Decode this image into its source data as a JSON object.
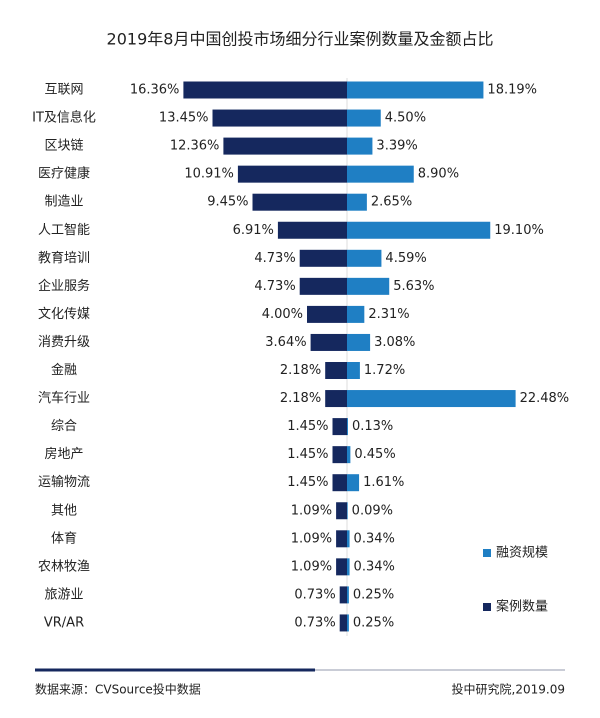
{
  "chart_data": {
    "type": "butterfly-bar",
    "title": "2019年8月中国创投市场细分行业案例数量及金额占比",
    "categories": [
      "互联网",
      "IT及信息化",
      "区块链",
      "医疗健康",
      "制造业",
      "人工智能",
      "教育培训",
      "企业服务",
      "文化传媒",
      "消费升级",
      "金融",
      "汽车行业",
      "综合",
      "房地产",
      "运输物流",
      "其他",
      "体育",
      "农林牧渔",
      "旅游业",
      "VR/AR"
    ],
    "series": [
      {
        "name": "融资规模",
        "color": "#1f7fc4",
        "side": "right",
        "values": [
          18.19,
          4.5,
          3.39,
          8.9,
          2.65,
          19.1,
          4.59,
          5.63,
          2.31,
          3.08,
          1.72,
          22.48,
          0.13,
          0.45,
          1.61,
          0.09,
          0.34,
          0.34,
          0.25,
          0.25
        ],
        "value_labels": [
          "18.19%",
          "4.50%",
          "3.39%",
          "8.90%",
          "2.65%",
          "19.10%",
          "4.59%",
          "5.63%",
          "2.31%",
          "3.08%",
          "1.72%",
          "22.48%",
          "0.13%",
          "0.45%",
          "1.61%",
          "0.09%",
          "0.34%",
          "0.34%",
          "0.25%",
          "0.25%"
        ]
      },
      {
        "name": "案例数量",
        "color": "#15285e",
        "side": "left",
        "values": [
          16.36,
          13.45,
          12.36,
          10.91,
          9.45,
          6.91,
          4.73,
          4.73,
          4.0,
          3.64,
          2.18,
          2.18,
          1.45,
          1.45,
          1.45,
          1.09,
          1.09,
          1.09,
          0.73,
          0.73
        ],
        "value_labels": [
          "16.36%",
          "13.45%",
          "12.36%",
          "10.91%",
          "9.45%",
          "6.91%",
          "4.73%",
          "4.73%",
          "4.00%",
          "3.64%",
          "2.18%",
          "2.18%",
          "1.45%",
          "1.45%",
          "1.45%",
          "1.09%",
          "1.09%",
          "1.09%",
          "0.73%",
          "0.73%"
        ]
      }
    ],
    "source": "数据来源：CVSource投中数据",
    "credit": "投中研究院,2019.09"
  }
}
